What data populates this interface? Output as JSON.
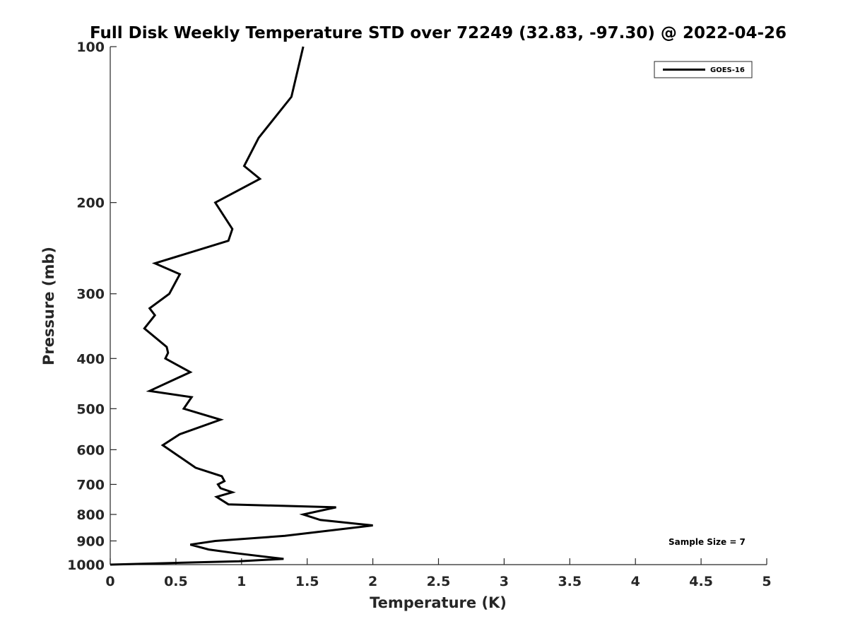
{
  "chart_data": {
    "type": "line",
    "title": "Full Disk Weekly Temperature STD over 72249 (32.83, -97.30) @ 2022-04-26",
    "xlabel": "Temperature (K)",
    "ylabel": "Pressure (mb)",
    "xlim": [
      0,
      5
    ],
    "ylim": [
      100,
      1000
    ],
    "y_scale": "log",
    "y_reversed": true,
    "grid": false,
    "x_ticks": [
      0,
      0.5,
      1,
      1.5,
      2,
      2.5,
      3,
      3.5,
      4,
      4.5,
      5
    ],
    "x_tick_labels": [
      "0",
      "0.5",
      "1",
      "1.5",
      "2",
      "2.5",
      "3",
      "3.5",
      "4",
      "4.5",
      "5"
    ],
    "y_ticks": [
      100,
      200,
      300,
      400,
      500,
      600,
      700,
      800,
      900,
      1000
    ],
    "y_tick_labels": [
      "100",
      "200",
      "300",
      "400",
      "500",
      "600",
      "700",
      "800",
      "900",
      "1000"
    ],
    "legend": {
      "placement": "top-right",
      "entries": [
        "GOES-16"
      ]
    },
    "annotation": "Sample Size = 7",
    "series": [
      {
        "name": "GOES-16",
        "color": "#000000",
        "points": [
          [
            1.47,
            100
          ],
          [
            1.38,
            125
          ],
          [
            1.13,
            150
          ],
          [
            1.02,
            170
          ],
          [
            1.14,
            180
          ],
          [
            0.8,
            200
          ],
          [
            0.93,
            225
          ],
          [
            0.9,
            237
          ],
          [
            0.34,
            262
          ],
          [
            0.53,
            275
          ],
          [
            0.45,
            300
          ],
          [
            0.3,
            320
          ],
          [
            0.34,
            330
          ],
          [
            0.26,
            350
          ],
          [
            0.43,
            380
          ],
          [
            0.44,
            390
          ],
          [
            0.42,
            400
          ],
          [
            0.61,
            425
          ],
          [
            0.3,
            462
          ],
          [
            0.62,
            475
          ],
          [
            0.56,
            500
          ],
          [
            0.84,
            525
          ],
          [
            0.53,
            560
          ],
          [
            0.4,
            588
          ],
          [
            0.5,
            612
          ],
          [
            0.65,
            650
          ],
          [
            0.85,
            675
          ],
          [
            0.87,
            690
          ],
          [
            0.82,
            700
          ],
          [
            0.84,
            712
          ],
          [
            0.93,
            725
          ],
          [
            0.81,
            740
          ],
          [
            0.9,
            765
          ],
          [
            1.72,
            775
          ],
          [
            1.47,
            800
          ],
          [
            1.6,
            820
          ],
          [
            2.0,
            840
          ],
          [
            1.33,
            880
          ],
          [
            0.8,
            900
          ],
          [
            0.61,
            915
          ],
          [
            0.75,
            935
          ],
          [
            0.95,
            950
          ],
          [
            1.32,
            975
          ],
          [
            0.98,
            985
          ],
          [
            0.0,
            1000
          ]
        ]
      }
    ]
  }
}
